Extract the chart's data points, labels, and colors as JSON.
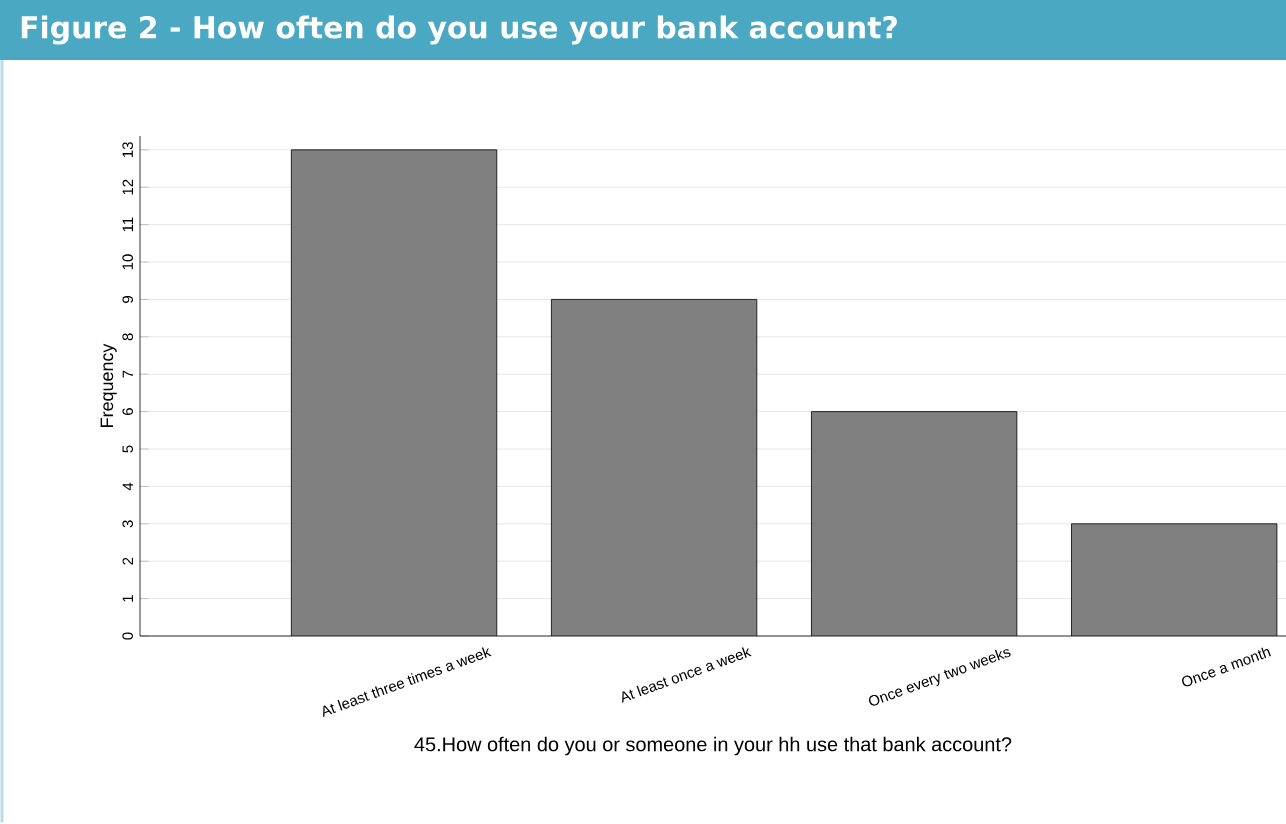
{
  "chart_data": {
    "type": "bar",
    "title": "Figure 2 - How often do you use your bank account?",
    "xlabel": "45.How often do you or someone in your hh use that bank account?",
    "ylabel": "Frequency",
    "categories": [
      "At least three times a week",
      "At least once a week",
      "Once every two weeks",
      "Once a month"
    ],
    "values": [
      13,
      9,
      6,
      3
    ],
    "color": "#808080",
    "ylim": [
      0,
      13.37
    ],
    "yticks": [
      0,
      1,
      2,
      3,
      4,
      5,
      6,
      7,
      8,
      9,
      10,
      11,
      12,
      13
    ],
    "grid": "y"
  }
}
